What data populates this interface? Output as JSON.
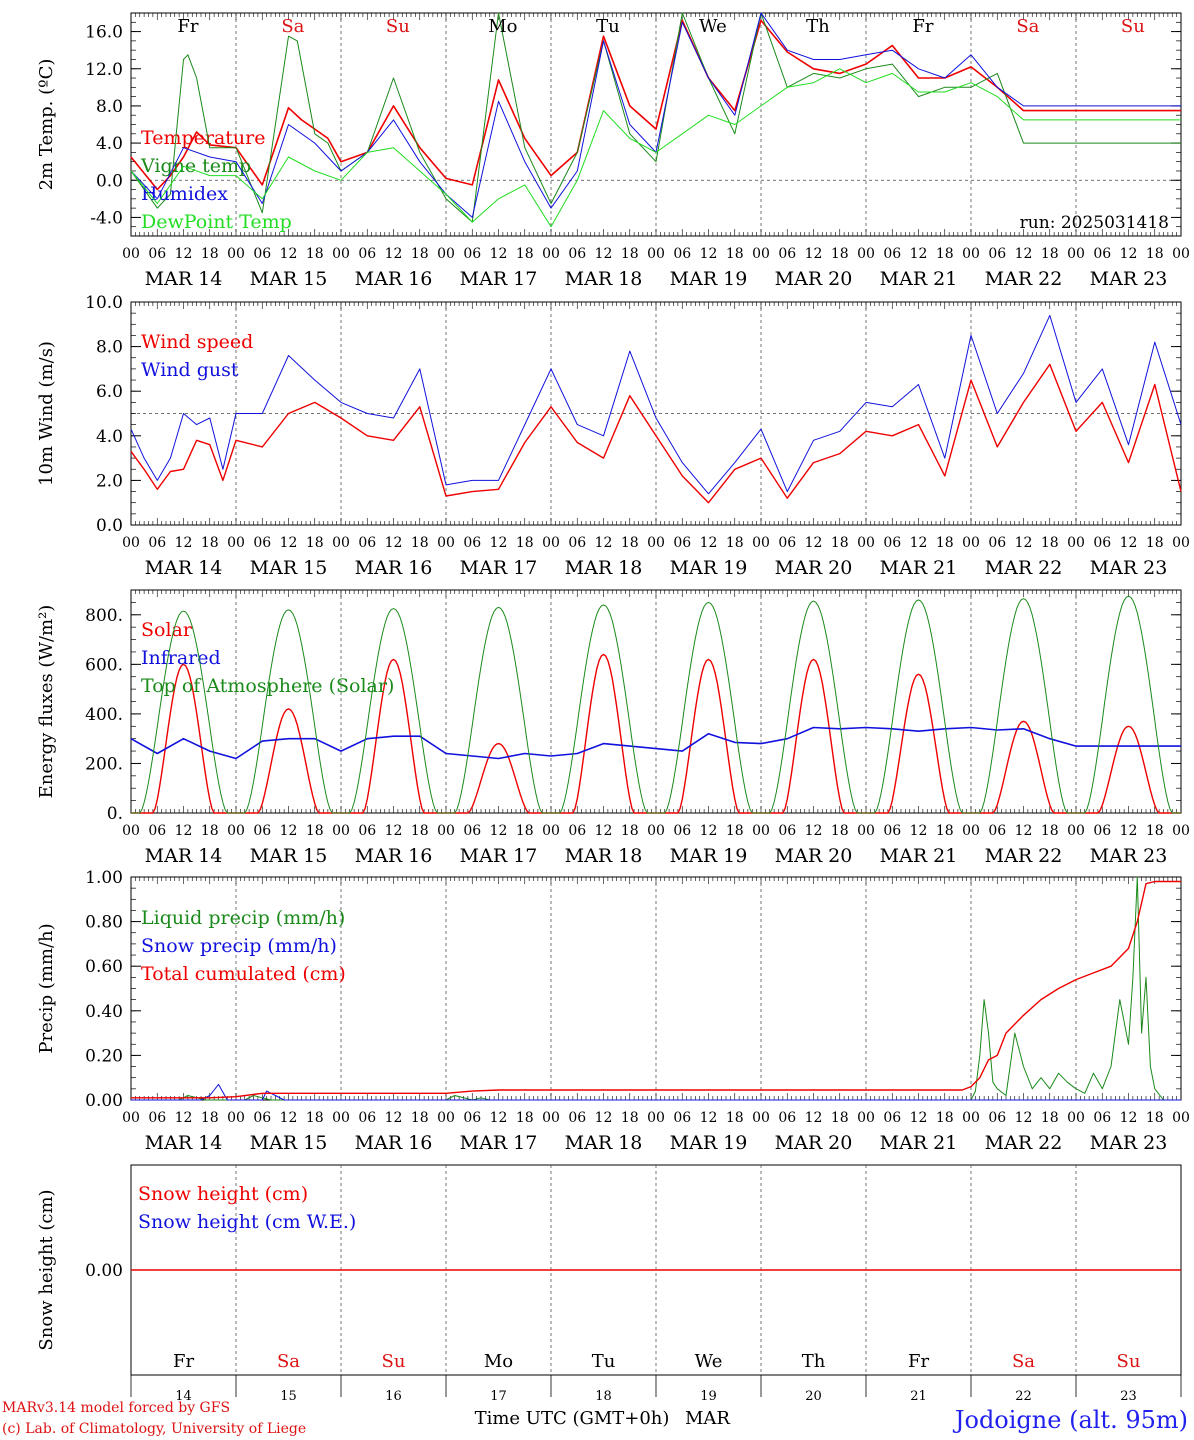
{
  "chart_data": [
    {
      "type": "line",
      "ylabel": "2m Temp. (ºC)",
      "ylim": [
        -6,
        18
      ],
      "yticks": [
        "-4.0",
        "0.0",
        "4.0",
        "8.0",
        "12.0",
        "16.0"
      ],
      "yticks_values": [
        -4,
        0,
        4,
        8,
        12,
        16
      ],
      "ref_line": 0,
      "annotation": "run: 2025031418",
      "day_names": [
        {
          "label": "Fr",
          "color": "#000000"
        },
        {
          "label": "Sa",
          "color": "#dd1111"
        },
        {
          "label": "Su",
          "color": "#dd1111"
        },
        {
          "label": "Mo",
          "color": "#000000"
        },
        {
          "label": "Tu",
          "color": "#000000"
        },
        {
          "label": "We",
          "color": "#000000"
        },
        {
          "label": "Th",
          "color": "#000000"
        },
        {
          "label": "Fr",
          "color": "#000000"
        },
        {
          "label": "Sa",
          "color": "#dd1111"
        },
        {
          "label": "Su",
          "color": "#dd1111"
        }
      ],
      "series": [
        {
          "name": "Temperature",
          "color": "#ee0000",
          "width": 1.6,
          "x": [
            0,
            6,
            9,
            12,
            15,
            18,
            24,
            30,
            36,
            39,
            42,
            45,
            48,
            54,
            60,
            66,
            72,
            78,
            84,
            90,
            96,
            102,
            108,
            114,
            120,
            126,
            132,
            138,
            144,
            150,
            156,
            162,
            168,
            174,
            180,
            186,
            192,
            198,
            204,
            210,
            216,
            222,
            228,
            234,
            240
          ],
          "y": [
            2.5,
            -1.0,
            0.5,
            2.5,
            5.2,
            3.8,
            3.5,
            -0.5,
            7.8,
            6.5,
            5.5,
            4.5,
            2.0,
            3.0,
            8.0,
            3.5,
            0.2,
            -0.5,
            10.8,
            4.5,
            0.5,
            3.0,
            15.5,
            8.0,
            5.5,
            17.2,
            11.0,
            7.5,
            17.2,
            13.8,
            12.0,
            11.5,
            12.5,
            14.5,
            11.0,
            11.0,
            12.2,
            10.0,
            7.5,
            7.5,
            7.5,
            7.5,
            7.5,
            7.5,
            7.5
          ]
        },
        {
          "name": "Vigne temp",
          "color": "#1a8a1a",
          "width": 1.0,
          "x": [
            0,
            6,
            9,
            12,
            13,
            15,
            18,
            24,
            30,
            36,
            38,
            42,
            45,
            48,
            54,
            60,
            66,
            72,
            78,
            84,
            90,
            96,
            102,
            108,
            114,
            120,
            126,
            132,
            138,
            144,
            150,
            156,
            162,
            168,
            174,
            180,
            186,
            192,
            198,
            204,
            210,
            216,
            222,
            228,
            234,
            240
          ],
          "y": [
            1.0,
            -3.0,
            -1.5,
            13.0,
            13.5,
            11.0,
            3.5,
            3.5,
            -3.5,
            15.5,
            15.0,
            5.0,
            4.0,
            1.0,
            3.0,
            11.0,
            3.0,
            -2.0,
            -4.5,
            18.0,
            3.5,
            -2.5,
            3.0,
            15.0,
            5.0,
            2.0,
            18.0,
            11.0,
            5.0,
            18.0,
            10.0,
            11.5,
            11.0,
            12.0,
            12.5,
            9.0,
            10.0,
            10.0,
            11.5,
            4.0,
            4.0,
            4.0,
            4.0,
            4.0,
            4.0,
            4.0
          ]
        },
        {
          "name": "Humidex",
          "color": "#1111dd",
          "width": 1.0,
          "x": [
            0,
            6,
            12,
            18,
            24,
            30,
            36,
            42,
            48,
            54,
            60,
            66,
            72,
            78,
            84,
            90,
            96,
            102,
            108,
            114,
            120,
            126,
            132,
            138,
            144,
            150,
            156,
            162,
            168,
            174,
            180,
            186,
            192,
            198,
            204,
            210,
            216,
            222,
            228,
            234,
            240
          ],
          "y": [
            1.0,
            -2.0,
            3.5,
            2.5,
            2.0,
            -2.5,
            6.0,
            4.0,
            1.0,
            3.0,
            6.5,
            2.0,
            -1.5,
            -4.0,
            8.5,
            2.0,
            -3.0,
            1.0,
            15.0,
            6.0,
            3.0,
            17.0,
            11.0,
            7.0,
            18.0,
            14.0,
            13.0,
            13.0,
            13.5,
            14.0,
            12.0,
            11.0,
            13.5,
            10.0,
            8.0,
            8.0,
            8.0,
            8.0,
            8.0,
            8.0,
            8.0
          ]
        },
        {
          "name": "DewPoint Temp",
          "color": "#22dd22",
          "width": 1.0,
          "x": [
            0,
            6,
            12,
            18,
            24,
            30,
            36,
            42,
            48,
            54,
            60,
            66,
            72,
            78,
            84,
            90,
            96,
            102,
            108,
            114,
            120,
            126,
            132,
            138,
            144,
            150,
            156,
            162,
            168,
            174,
            180,
            186,
            192,
            198,
            204,
            210,
            216,
            222,
            228,
            234,
            240
          ],
          "y": [
            1.0,
            -2.5,
            1.5,
            0.5,
            0.5,
            -2.0,
            2.5,
            1.0,
            0.0,
            3.0,
            3.5,
            1.0,
            -1.5,
            -4.5,
            -2.0,
            -0.5,
            -5.0,
            0.0,
            7.5,
            4.5,
            3.0,
            5.0,
            7.0,
            6.0,
            8.0,
            10.0,
            10.5,
            12.0,
            10.5,
            11.5,
            9.5,
            9.5,
            10.5,
            9.0,
            6.5,
            6.5,
            6.5,
            6.5,
            6.5,
            6.5,
            6.5
          ]
        }
      ]
    },
    {
      "type": "line",
      "ylabel": "10m Wind (m/s)",
      "ylim": [
        0,
        10
      ],
      "yticks": [
        "0.0",
        "2.0",
        "4.0",
        "6.0",
        "8.0",
        "10.0"
      ],
      "yticks_values": [
        0,
        2,
        4,
        6,
        8,
        10
      ],
      "ref_line": 5,
      "series": [
        {
          "name": "Wind speed",
          "color": "#ee0000",
          "width": 1.4,
          "x": [
            0,
            3,
            6,
            9,
            12,
            15,
            18,
            21,
            24,
            30,
            36,
            42,
            48,
            54,
            60,
            66,
            72,
            78,
            84,
            90,
            96,
            102,
            108,
            114,
            120,
            126,
            132,
            138,
            144,
            150,
            156,
            162,
            168,
            174,
            180,
            186,
            192,
            198,
            204,
            210,
            216,
            222,
            228,
            234,
            240
          ],
          "y": [
            3.3,
            2.5,
            1.6,
            2.4,
            2.5,
            3.8,
            3.6,
            2.0,
            3.8,
            3.5,
            5.0,
            5.5,
            4.8,
            4.0,
            3.8,
            5.3,
            1.3,
            1.5,
            1.6,
            3.7,
            5.3,
            3.7,
            3.0,
            5.8,
            4.0,
            2.2,
            1.0,
            2.5,
            3.0,
            1.2,
            2.8,
            3.2,
            4.2,
            4.0,
            4.5,
            2.2,
            6.5,
            3.5,
            5.5,
            7.2,
            4.2,
            5.5,
            2.8,
            6.3,
            1.5
          ]
        },
        {
          "name": "Wind gust",
          "color": "#1111dd",
          "width": 1.0,
          "x": [
            0,
            3,
            6,
            9,
            12,
            15,
            18,
            21,
            24,
            30,
            36,
            42,
            48,
            54,
            60,
            66,
            72,
            78,
            84,
            90,
            96,
            102,
            108,
            114,
            120,
            126,
            132,
            138,
            144,
            150,
            156,
            162,
            168,
            174,
            180,
            186,
            192,
            198,
            204,
            210,
            216,
            222,
            228,
            234,
            240
          ],
          "y": [
            4.3,
            3.0,
            2.0,
            3.0,
            5.0,
            4.5,
            4.8,
            2.5,
            5.0,
            5.0,
            7.6,
            6.5,
            5.5,
            5.0,
            4.8,
            7.0,
            1.8,
            2.0,
            2.0,
            4.5,
            7.0,
            4.5,
            4.0,
            7.8,
            4.8,
            2.8,
            1.4,
            2.8,
            4.3,
            1.5,
            3.8,
            4.2,
            5.5,
            5.3,
            6.3,
            3.0,
            8.5,
            5.0,
            6.8,
            9.4,
            5.5,
            7.0,
            3.6,
            8.2,
            4.5
          ]
        }
      ]
    },
    {
      "type": "line",
      "ylabel": "Energy fluxes (W/m²)",
      "ylim": [
        0,
        900
      ],
      "yticks": [
        "0.",
        "200.",
        "400.",
        "600.",
        "800."
      ],
      "yticks_values": [
        0,
        200,
        400,
        600,
        800
      ],
      "series": [
        {
          "name": "Solar",
          "color": "#ee0000",
          "width": 1.4,
          "peaks": [
            600,
            420,
            620,
            280,
            640,
            620,
            620,
            560,
            370,
            350
          ]
        },
        {
          "name": "Infrared",
          "color": "#1111dd",
          "width": 1.6,
          "x": [
            0,
            6,
            12,
            18,
            24,
            30,
            36,
            42,
            48,
            54,
            60,
            66,
            72,
            78,
            84,
            90,
            96,
            102,
            108,
            114,
            120,
            126,
            132,
            138,
            144,
            150,
            156,
            162,
            168,
            174,
            180,
            186,
            192,
            198,
            204,
            210,
            216,
            222,
            228,
            234,
            240
          ],
          "y": [
            300,
            240,
            300,
            250,
            220,
            290,
            300,
            300,
            250,
            300,
            310,
            310,
            240,
            230,
            220,
            240,
            230,
            240,
            280,
            270,
            260,
            250,
            320,
            285,
            280,
            300,
            345,
            340,
            345,
            340,
            330,
            340,
            345,
            335,
            340,
            300,
            270,
            270,
            270,
            270,
            270
          ]
        },
        {
          "name": "Top of Atmosphere (Solar)",
          "color": "#1a8a1a",
          "width": 1.0,
          "peaks": [
            815,
            820,
            825,
            830,
            840,
            850,
            855,
            860,
            865,
            875
          ]
        }
      ]
    },
    {
      "type": "line",
      "ylabel": "Precip (mm/h)",
      "ylim": [
        0,
        1.0
      ],
      "yticks": [
        "0.00",
        "0.20",
        "0.40",
        "0.60",
        "0.80",
        "1.00"
      ],
      "yticks_values": [
        0,
        0.2,
        0.4,
        0.6,
        0.8,
        1.0
      ],
      "series": [
        {
          "name": "Liquid precip (mm/h)",
          "color": "#1a8a1a",
          "width": 1.0,
          "x": [
            0,
            11,
            13,
            17,
            22,
            26,
            28,
            30,
            32,
            34,
            36,
            72,
            74,
            78,
            80,
            82,
            90,
            192,
            193,
            194,
            195,
            196,
            197,
            198,
            200,
            202,
            204,
            206,
            208,
            210,
            212,
            214,
            216,
            218,
            220,
            222,
            224,
            226,
            228,
            229,
            230,
            231,
            232,
            233,
            234,
            236,
            238,
            240
          ],
          "y": [
            0,
            0,
            0.02,
            0,
            0,
            0,
            0.02,
            0.01,
            0,
            0,
            0,
            0,
            0.02,
            0,
            0.01,
            0,
            0,
            0,
            0.04,
            0.2,
            0.45,
            0.3,
            0.08,
            0.05,
            0.02,
            0.3,
            0.15,
            0.05,
            0.1,
            0.05,
            0.12,
            0.08,
            0.05,
            0.03,
            0.12,
            0.05,
            0.15,
            0.45,
            0.25,
            0.55,
            1.0,
            0.3,
            0.55,
            0.15,
            0.05,
            0,
            0,
            0
          ]
        },
        {
          "name": "Snow precip (mm/h)",
          "color": "#1111dd",
          "width": 1.0,
          "x": [
            0,
            16,
            18,
            20,
            22,
            30,
            31,
            33,
            35,
            240
          ],
          "y": [
            0,
            0,
            0.02,
            0.07,
            0,
            0,
            0.04,
            0.02,
            0,
            0
          ]
        },
        {
          "name": "Total cumulated (cm)",
          "color": "#ee0000",
          "width": 1.4,
          "x": [
            0,
            18,
            24,
            30,
            36,
            72,
            78,
            84,
            96,
            120,
            150,
            180,
            190,
            192,
            194,
            196,
            198,
            200,
            204,
            208,
            212,
            216,
            220,
            224,
            228,
            230,
            232,
            234,
            236,
            240
          ],
          "y": [
            0.01,
            0.01,
            0.015,
            0.03,
            0.03,
            0.03,
            0.04,
            0.045,
            0.045,
            0.045,
            0.045,
            0.045,
            0.045,
            0.06,
            0.1,
            0.18,
            0.2,
            0.3,
            0.38,
            0.45,
            0.5,
            0.54,
            0.57,
            0.6,
            0.68,
            0.8,
            0.97,
            0.98,
            0.98,
            0.98
          ]
        }
      ]
    },
    {
      "type": "line",
      "ylabel": "Snow height (cm)",
      "ylim": [
        -1,
        1
      ],
      "yticks": [
        "0.00"
      ],
      "yticks_values": [
        0
      ],
      "series": [
        {
          "name": "Snow height (cm)",
          "color": "#ee0000",
          "width": 1.4,
          "x": [
            0,
            240
          ],
          "y": [
            0,
            0
          ]
        },
        {
          "name": "Snow height (cm W.E.)",
          "color": "#1111dd",
          "width": 1.0,
          "x": [],
          "y": []
        }
      ],
      "day_names": [
        {
          "label": "Fr",
          "color": "#000000"
        },
        {
          "label": "Sa",
          "color": "#dd1111"
        },
        {
          "label": "Su",
          "color": "#dd1111"
        },
        {
          "label": "Mo",
          "color": "#000000"
        },
        {
          "label": "Tu",
          "color": "#000000"
        },
        {
          "label": "We",
          "color": "#000000"
        },
        {
          "label": "Th",
          "color": "#000000"
        },
        {
          "label": "Fr",
          "color": "#000000"
        },
        {
          "label": "Sa",
          "color": "#dd1111"
        },
        {
          "label": "Su",
          "color": "#dd1111"
        }
      ],
      "day_numbers": [
        "14",
        "15",
        "16",
        "17",
        "18",
        "19",
        "20",
        "21",
        "22",
        "23"
      ]
    }
  ],
  "x_axis": {
    "hours_total": 240,
    "hour_tick_labels": [
      "00",
      "06",
      "12",
      "18"
    ],
    "date_labels": [
      "MAR 14",
      "MAR 15",
      "MAR 16",
      "MAR 17",
      "MAR 18",
      "MAR 19",
      "MAR 20",
      "MAR 21",
      "MAR 22",
      "MAR 23"
    ],
    "title": "Time UTC (GMT+0h)",
    "month": "MAR"
  },
  "footer": {
    "model_line": "MARv3.14 model forced by GFS",
    "credit_line": "(c) Lab. of Climatology, University of Liege",
    "location": "Jodoigne (alt. 95m)"
  }
}
